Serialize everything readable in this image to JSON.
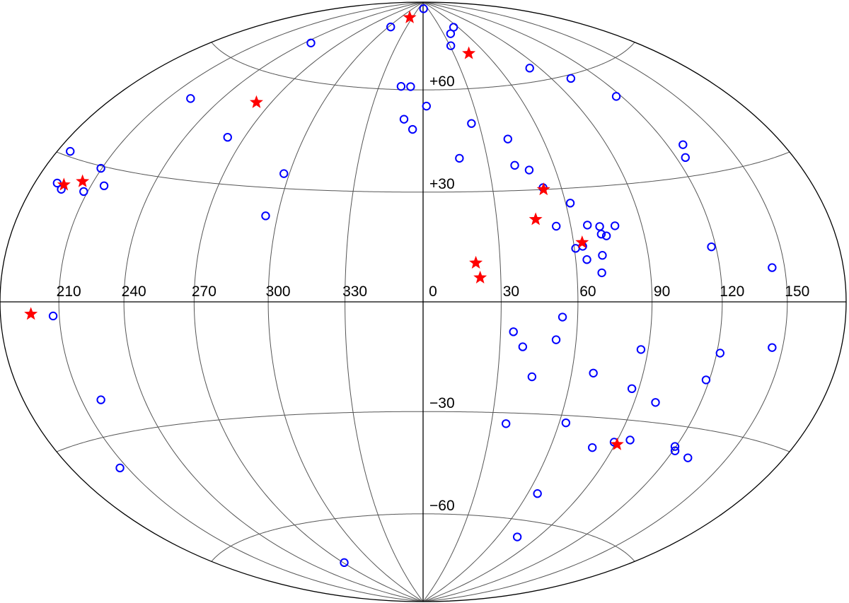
{
  "chart_data": {
    "type": "scatter",
    "projection": "hammer-aitoff",
    "grid": true,
    "x_ticks": [
      "210",
      "240",
      "270",
      "300",
      "330",
      "0",
      "30",
      "60",
      "90",
      "120",
      "150"
    ],
    "x_tick_values": [
      210,
      240,
      270,
      300,
      330,
      0,
      30,
      60,
      90,
      120,
      150
    ],
    "y_ticks": [
      "+60",
      "+30",
      "−30",
      "−60"
    ],
    "y_tick_values": [
      60,
      30,
      -30,
      -60
    ],
    "meridians": [
      180,
      210,
      240,
      270,
      300,
      330,
      0,
      30,
      60,
      90,
      120,
      150
    ],
    "parallels": [
      -60,
      -30,
      0,
      30,
      60
    ],
    "series": [
      {
        "marker": "open-circle",
        "color": "#0000ff",
        "points": [
          [
            3.0,
            87.5
          ],
          [
            40.0,
            78.0
          ],
          [
            53.0,
            80.0
          ],
          [
            31.0,
            74.0
          ],
          [
            303.5,
            80.0
          ],
          [
            245.0,
            70.0
          ],
          [
            345.0,
            61.0
          ],
          [
            351.5,
            61.0
          ],
          [
            2.0,
            55.0
          ],
          [
            349.5,
            51.0
          ],
          [
            354.5,
            48.0
          ],
          [
            26.0,
            49.5
          ],
          [
            42.5,
            44.5
          ],
          [
            83.0,
            64.0
          ],
          [
            102.5,
            59.0
          ],
          [
            117.0,
            52.0
          ],
          [
            17.0,
            39.5
          ],
          [
            42.0,
            37.0
          ],
          [
            48.0,
            35.5
          ],
          [
            222.5,
            49.0
          ],
          [
            261.5,
            42.0
          ],
          [
            297.5,
            34.0
          ],
          [
            52.0,
            30.5
          ],
          [
            128.0,
            37.5
          ],
          [
            124.5,
            34.5
          ],
          [
            187.0,
            31.0
          ],
          [
            209.5,
            29.5
          ],
          [
            216.5,
            26.0
          ],
          [
            192.0,
            24.5
          ],
          [
            196.0,
            23.5
          ],
          [
            208.0,
            24.0
          ],
          [
            295.0,
            22.5
          ],
          [
            62.0,
            26.0
          ],
          [
            54.0,
            20.0
          ],
          [
            67.0,
            20.0
          ],
          [
            72.0,
            19.5
          ],
          [
            78.5,
            19.5
          ],
          [
            72.0,
            17.5
          ],
          [
            74.0,
            17.0
          ],
          [
            60.5,
            14.0
          ],
          [
            63.5,
            14.5
          ],
          [
            118.0,
            13.0
          ],
          [
            64.5,
            11.0
          ],
          [
            71.0,
            12.0
          ],
          [
            70.0,
            7.5
          ],
          [
            144.0,
            7.5
          ],
          [
            207.0,
            -3.0
          ],
          [
            54.0,
            -4.0
          ],
          [
            35.0,
            -8.0
          ],
          [
            52.0,
            -10.0
          ],
          [
            39.0,
            -12.0
          ],
          [
            87.0,
            -12.0
          ],
          [
            121.5,
            -12.0
          ],
          [
            145.0,
            -10.0
          ],
          [
            44.0,
            -20.0
          ],
          [
            69.0,
            -18.5
          ],
          [
            118.5,
            -18.5
          ],
          [
            87.0,
            -22.0
          ],
          [
            99.5,
            -25.0
          ],
          [
            219.5,
            -22.0
          ],
          [
            36.5,
            -33.0
          ],
          [
            63.0,
            -32.0
          ],
          [
            96.0,
            -35.0
          ],
          [
            89.0,
            -36.0
          ],
          [
            119.5,
            -35.0
          ],
          [
            121.0,
            -36.0
          ],
          [
            130.0,
            -37.0
          ],
          [
            80.0,
            -38.0
          ],
          [
            206.0,
            -37.0
          ],
          [
            65.5,
            -52.0
          ],
          [
            75.0,
            -65.0
          ],
          [
            271.0,
            -73.0
          ]
        ]
      },
      {
        "marker": "filled-star",
        "color": "#ff0000",
        "points": [
          [
            323.0,
            84.0
          ],
          [
            44.5,
            71.0
          ],
          [
            261.5,
            52.0
          ],
          [
            52.0,
            30.0
          ],
          [
            46.0,
            22.0
          ],
          [
            196.0,
            24.5
          ],
          [
            204.5,
            26.0
          ],
          [
            63.5,
            15.5
          ],
          [
            20.5,
            10.5
          ],
          [
            22.0,
            6.5
          ],
          [
            196.0,
            -2.5
          ],
          [
            91.0,
            -36.5
          ]
        ]
      }
    ]
  }
}
